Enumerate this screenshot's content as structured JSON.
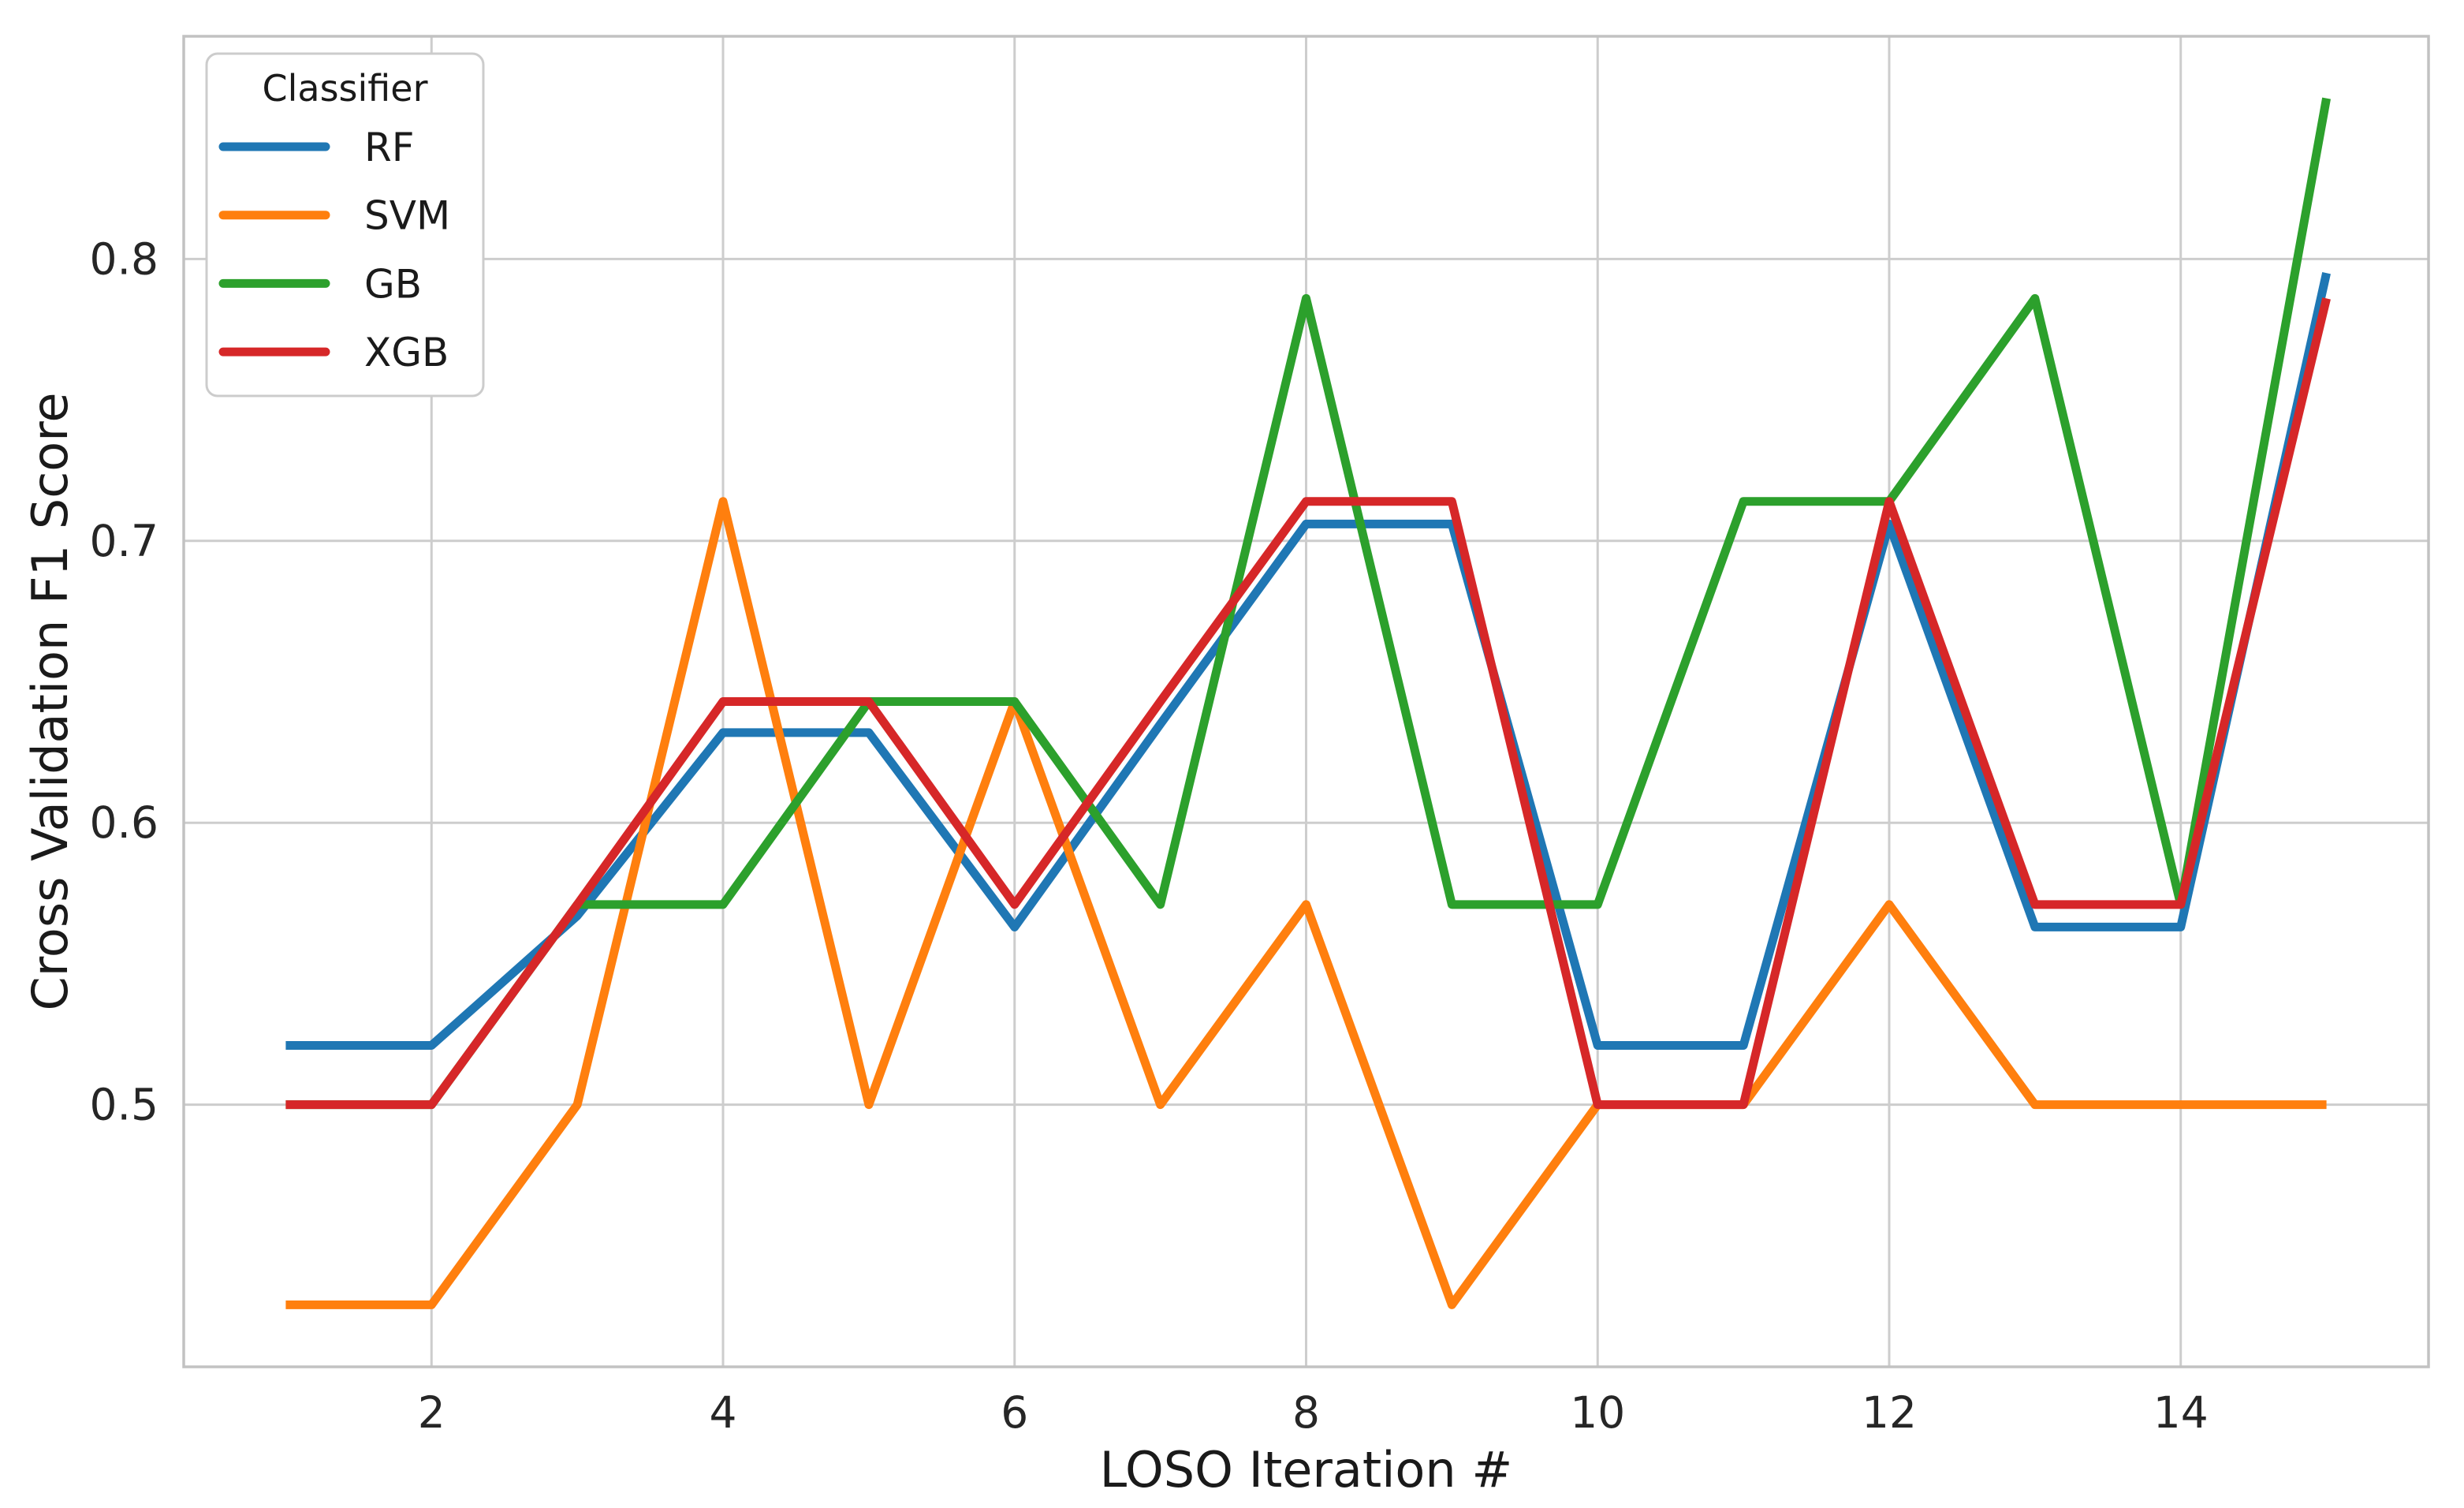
{
  "chart_data": {
    "type": "line",
    "title": "",
    "xlabel": "LOSO Iteration #",
    "ylabel": "Cross Validation F1 Score",
    "x": [
      1,
      2,
      3,
      4,
      5,
      6,
      7,
      8,
      9,
      10,
      11,
      12,
      13,
      14,
      15
    ],
    "series": [
      {
        "name": "RF",
        "color": "#1f77b4",
        "values": [
          0.521,
          0.521,
          0.567,
          0.632,
          0.632,
          0.563,
          0.635,
          0.706,
          0.706,
          0.521,
          0.521,
          0.706,
          0.563,
          0.563,
          0.795
        ]
      },
      {
        "name": "SVM",
        "color": "#ff7f0e",
        "values": [
          0.429,
          0.429,
          0.5,
          0.714,
          0.5,
          0.643,
          0.5,
          0.571,
          0.429,
          0.5,
          0.5,
          0.571,
          0.5,
          0.5,
          0.5
        ]
      },
      {
        "name": "GB",
        "color": "#2ca02c",
        "values": [
          0.5,
          0.5,
          0.571,
          0.571,
          0.643,
          0.643,
          0.571,
          0.786,
          0.571,
          0.571,
          0.714,
          0.714,
          0.786,
          0.571,
          0.857
        ]
      },
      {
        "name": "XGB",
        "color": "#d62728",
        "values": [
          0.5,
          0.5,
          0.571,
          0.643,
          0.643,
          0.571,
          0.643,
          0.714,
          0.714,
          0.5,
          0.5,
          0.714,
          0.571,
          0.571,
          0.786
        ]
      }
    ],
    "legend": {
      "title": "Classifier",
      "position": "upper-left"
    },
    "x_ticks": [
      "2",
      "4",
      "6",
      "8",
      "10",
      "12",
      "14"
    ],
    "x_tick_values": [
      2,
      4,
      6,
      8,
      10,
      12,
      14
    ],
    "y_ticks": [
      "0.5",
      "0.6",
      "0.7",
      "0.8"
    ],
    "y_tick_values": [
      0.5,
      0.6,
      0.7,
      0.8
    ],
    "xlim": [
      0.3,
      15.7
    ],
    "ylim": [
      0.407,
      0.879
    ],
    "grid": true,
    "legend_position": "upper left"
  },
  "style": {
    "background_color": "#ffffff",
    "grid_color": "#cdcdcd",
    "spine_color": "#c2c2c2",
    "tick_label_color": "#262626",
    "axis_label_color": "#1a1a1a",
    "legend_border_color": "#cccccc",
    "legend_text_color": "#1a1a1a"
  }
}
